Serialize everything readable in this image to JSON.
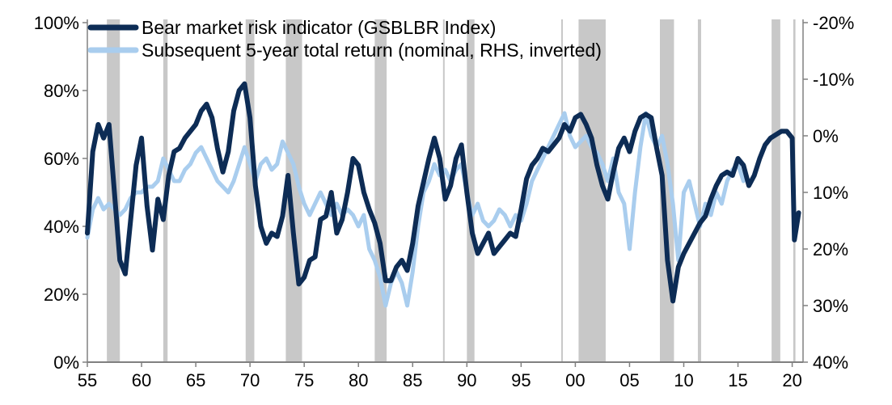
{
  "chart_data": {
    "type": "line",
    "title": "",
    "xlabel": "",
    "ylabel": "",
    "x_ticks": [
      "55",
      "60",
      "65",
      "70",
      "75",
      "80",
      "85",
      "90",
      "95",
      "00",
      "05",
      "10",
      "15",
      "20"
    ],
    "x_tick_years": [
      1955,
      1960,
      1965,
      1970,
      1975,
      1980,
      1985,
      1990,
      1995,
      2000,
      2005,
      2010,
      2015,
      2020
    ],
    "xlim": [
      1955,
      2021
    ],
    "left_axis": {
      "ylim": [
        0,
        100
      ],
      "ticks": [
        0,
        20,
        40,
        60,
        80,
        100
      ],
      "tick_labels": [
        "0%",
        "20%",
        "40%",
        "60%",
        "80%",
        "100%"
      ]
    },
    "right_axis": {
      "ylim": [
        40,
        -20
      ],
      "inverted": true,
      "ticks": [
        -20,
        -10,
        0,
        10,
        20,
        30,
        40
      ],
      "tick_labels": [
        "-20%",
        "-10%",
        "0%",
        "10%",
        "20%",
        "30%",
        "40%"
      ]
    },
    "recessions": [
      [
        1957.6,
        1958.3
      ],
      [
        1960.3,
        1961.1
      ],
      [
        1969.9,
        1970.9
      ],
      [
        1973.9,
        1975.2
      ],
      [
        1980.0,
        1980.5
      ],
      [
        1981.6,
        1982.9
      ],
      [
        1990.6,
        1991.2
      ],
      [
        2001.2,
        2001.9
      ],
      [
        2007.9,
        2009.5
      ],
      [
        2020.1,
        2020.4
      ]
    ],
    "shaded_bands": [
      [
        1956.8,
        1958.0
      ],
      [
        1962.0,
        1962.4
      ],
      [
        1969.6,
        1970.4
      ],
      [
        1973.3,
        1974.8
      ],
      [
        1981.5,
        1982.6
      ],
      [
        1987.8,
        1987.95
      ],
      [
        1990.0,
        1990.7
      ],
      [
        1998.7,
        1998.85
      ],
      [
        2000.3,
        2002.8
      ],
      [
        2007.8,
        2009.1
      ],
      [
        2011.3,
        2011.6
      ],
      [
        2018.1,
        2018.9
      ],
      [
        2020.1,
        2020.3
      ]
    ],
    "series": [
      {
        "name": "Bear market risk indicator (GSBLBR Index)",
        "axis": "left",
        "color": "#0d2c55",
        "x": [
          1955.0,
          1955.5,
          1956.0,
          1956.5,
          1957.0,
          1957.5,
          1958.0,
          1958.5,
          1959.0,
          1959.5,
          1960.0,
          1960.5,
          1961.0,
          1961.5,
          1962.0,
          1962.5,
          1963.0,
          1963.5,
          1964.0,
          1964.5,
          1965.0,
          1965.5,
          1966.0,
          1966.5,
          1967.0,
          1967.5,
          1968.0,
          1968.5,
          1969.0,
          1969.5,
          1970.0,
          1970.5,
          1971.0,
          1971.5,
          1972.0,
          1972.5,
          1973.0,
          1973.5,
          1974.0,
          1974.5,
          1975.0,
          1975.5,
          1976.0,
          1976.5,
          1977.0,
          1977.5,
          1978.0,
          1978.5,
          1979.0,
          1979.5,
          1980.0,
          1980.5,
          1981.0,
          1981.5,
          1982.0,
          1982.5,
          1983.0,
          1983.5,
          1984.0,
          1984.5,
          1985.0,
          1985.5,
          1986.0,
          1986.5,
          1987.0,
          1987.5,
          1988.0,
          1988.5,
          1989.0,
          1989.5,
          1990.0,
          1990.5,
          1991.0,
          1991.5,
          1992.0,
          1992.5,
          1993.0,
          1993.5,
          1994.0,
          1994.5,
          1995.0,
          1995.5,
          1996.0,
          1996.5,
          1997.0,
          1997.5,
          1998.0,
          1998.5,
          1999.0,
          1999.5,
          2000.0,
          2000.5,
          2001.0,
          2001.5,
          2002.0,
          2002.5,
          2003.0,
          2003.5,
          2004.0,
          2004.5,
          2005.0,
          2005.5,
          2006.0,
          2006.5,
          2007.0,
          2007.5,
          2008.0,
          2008.5,
          2009.0,
          2009.5,
          2010.0,
          2010.5,
          2011.0,
          2011.5,
          2012.0,
          2012.5,
          2013.0,
          2013.5,
          2014.0,
          2014.5,
          2015.0,
          2015.5,
          2016.0,
          2016.5,
          2017.0,
          2017.5,
          2018.0,
          2018.5,
          2019.0,
          2019.5,
          2020.0,
          2020.2,
          2020.4,
          2020.6
        ],
        "values": [
          38,
          62,
          70,
          66,
          70,
          50,
          30,
          26,
          42,
          58,
          66,
          46,
          33,
          48,
          42,
          55,
          62,
          63,
          66,
          68,
          70,
          74,
          76,
          72,
          63,
          56,
          62,
          74,
          80,
          82,
          72,
          52,
          40,
          35,
          38,
          37,
          43,
          55,
          38,
          23,
          25,
          30,
          31,
          42,
          43,
          50,
          38,
          42,
          50,
          60,
          58,
          50,
          45,
          41,
          35,
          24,
          24,
          28,
          30,
          27,
          35,
          46,
          53,
          60,
          66,
          60,
          48,
          52,
          60,
          64,
          50,
          38,
          32,
          35,
          38,
          32,
          34,
          36,
          38,
          37,
          45,
          54,
          58,
          60,
          63,
          62,
          64,
          66,
          70,
          68,
          72,
          73,
          70,
          66,
          58,
          52,
          48,
          56,
          63,
          66,
          62,
          68,
          72,
          73,
          72,
          63,
          55,
          30,
          18,
          28,
          32,
          35,
          38,
          41,
          43,
          48,
          52,
          55,
          56,
          55,
          60,
          58,
          52,
          55,
          60,
          64,
          66,
          67,
          68,
          68,
          66,
          36,
          40,
          44
        ]
      },
      {
        "name": "Subsequent 5-year total return (nominal, RHS, inverted)",
        "axis": "right",
        "color": "#a9cdee",
        "x": [
          1955.0,
          1955.5,
          1956.0,
          1956.5,
          1957.0,
          1957.5,
          1958.0,
          1958.5,
          1959.0,
          1959.5,
          1960.0,
          1960.5,
          1961.0,
          1961.5,
          1962.0,
          1962.5,
          1963.0,
          1963.5,
          1964.0,
          1964.5,
          1965.0,
          1965.5,
          1966.0,
          1966.5,
          1967.0,
          1967.5,
          1968.0,
          1968.5,
          1969.0,
          1969.5,
          1970.0,
          1970.5,
          1971.0,
          1971.5,
          1972.0,
          1972.5,
          1973.0,
          1973.5,
          1974.0,
          1974.5,
          1975.0,
          1975.5,
          1976.0,
          1976.5,
          1977.0,
          1977.5,
          1978.0,
          1978.5,
          1979.0,
          1979.5,
          1980.0,
          1980.5,
          1981.0,
          1981.5,
          1982.0,
          1982.5,
          1983.0,
          1983.5,
          1984.0,
          1984.5,
          1985.0,
          1985.5,
          1986.0,
          1986.5,
          1987.0,
          1987.5,
          1988.0,
          1988.5,
          1989.0,
          1989.5,
          1990.0,
          1990.5,
          1991.0,
          1991.5,
          1992.0,
          1992.5,
          1993.0,
          1993.5,
          1994.0,
          1994.5,
          1995.0,
          1995.5,
          1996.0,
          1996.5,
          1997.0,
          1997.5,
          1998.0,
          1998.5,
          1999.0,
          1999.5,
          2000.0,
          2000.5,
          2001.0,
          2001.5,
          2002.0,
          2002.5,
          2003.0,
          2003.5,
          2004.0,
          2004.5,
          2005.0,
          2005.5,
          2006.0,
          2006.5,
          2007.0,
          2007.5,
          2008.0,
          2008.5,
          2009.0,
          2009.5,
          2010.0,
          2010.5,
          2011.0,
          2011.5,
          2012.0,
          2012.5,
          2013.0,
          2013.5,
          2014.0,
          2014.5,
          2015.0,
          2015.5
        ],
        "values": [
          18,
          13,
          11,
          13,
          12,
          13,
          14,
          13,
          11,
          10,
          10,
          9,
          9,
          8,
          4,
          6,
          8,
          8,
          6,
          5,
          3,
          2,
          4,
          6,
          8,
          9,
          10,
          8,
          5,
          2,
          5,
          8,
          5,
          4,
          6,
          5,
          1,
          3,
          5,
          9,
          12,
          14,
          12,
          10,
          12,
          14,
          12,
          14,
          13,
          14,
          16,
          14,
          20,
          22,
          25,
          30,
          26,
          24,
          26,
          30,
          24,
          16,
          10,
          8,
          5,
          7,
          6,
          8,
          6,
          5,
          10,
          14,
          12,
          15,
          16,
          15,
          13,
          14,
          16,
          14,
          15,
          12,
          8,
          6,
          4,
          2,
          0,
          -2,
          -4,
          0,
          2,
          1,
          0,
          2,
          3,
          5,
          8,
          4,
          10,
          12,
          20,
          10,
          2,
          -4,
          0,
          2,
          0,
          5,
          12,
          22,
          10,
          8,
          12,
          16,
          12,
          14,
          10,
          12,
          8,
          6,
          5,
          8
        ]
      }
    ]
  }
}
